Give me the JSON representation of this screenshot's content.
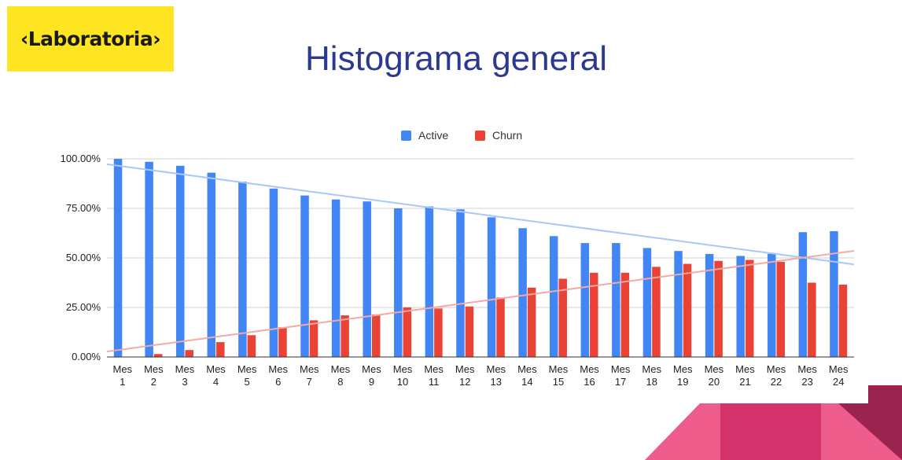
{
  "logo": {
    "text": "‹Laboratoria›"
  },
  "title": "Histograma general",
  "colors": {
    "active": "#4285f4",
    "churn": "#ea4335",
    "active_trend": "#a9c8f5",
    "churn_trend": "#f4a9a3",
    "title": "#2b3a8f",
    "logo_bg": "#ffe521"
  },
  "chart_data": {
    "type": "bar",
    "title": "",
    "xlabel": "",
    "ylabel": "",
    "ylim": [
      0,
      100
    ],
    "yticks": [
      "0.00%",
      "25.00%",
      "50.00%",
      "75.00%",
      "100.00%"
    ],
    "legend_position": "top",
    "grid": true,
    "categories": [
      [
        "Mes",
        "1"
      ],
      [
        "Mes",
        "2"
      ],
      [
        "Mes",
        "3"
      ],
      [
        "Mes",
        "4"
      ],
      [
        "Mes",
        "5"
      ],
      [
        "Mes",
        "6"
      ],
      [
        "Mes",
        "7"
      ],
      [
        "Mes",
        "8"
      ],
      [
        "Mes",
        "9"
      ],
      [
        "Mes",
        "10"
      ],
      [
        "Mes",
        "11"
      ],
      [
        "Mes",
        "12"
      ],
      [
        "Mes",
        "13"
      ],
      [
        "Mes",
        "14"
      ],
      [
        "Mes",
        "15"
      ],
      [
        "Mes",
        "16"
      ],
      [
        "Mes",
        "17"
      ],
      [
        "Mes",
        "18"
      ],
      [
        "Mes",
        "19"
      ],
      [
        "Mes",
        "20"
      ],
      [
        "Mes",
        "21"
      ],
      [
        "Mes",
        "22"
      ],
      [
        "Mes",
        "23"
      ],
      [
        "Mes",
        "24"
      ]
    ],
    "series": [
      {
        "name": "Active",
        "values": [
          100,
          98.5,
          96.5,
          93,
          88.5,
          85,
          81.5,
          79.5,
          78.5,
          75,
          76,
          74.5,
          70.5,
          65,
          61,
          57.5,
          57.5,
          55,
          53.5,
          52,
          51,
          52,
          63,
          63.5
        ]
      },
      {
        "name": "Churn",
        "values": [
          0,
          1.5,
          3.5,
          7.5,
          11,
          15,
          18.5,
          21,
          21.5,
          25,
          24.5,
          25.5,
          30,
          35,
          39.5,
          42.5,
          42.5,
          45.5,
          47,
          48.5,
          49,
          48,
          37.5,
          36.5
        ]
      }
    ],
    "trendlines": true
  }
}
